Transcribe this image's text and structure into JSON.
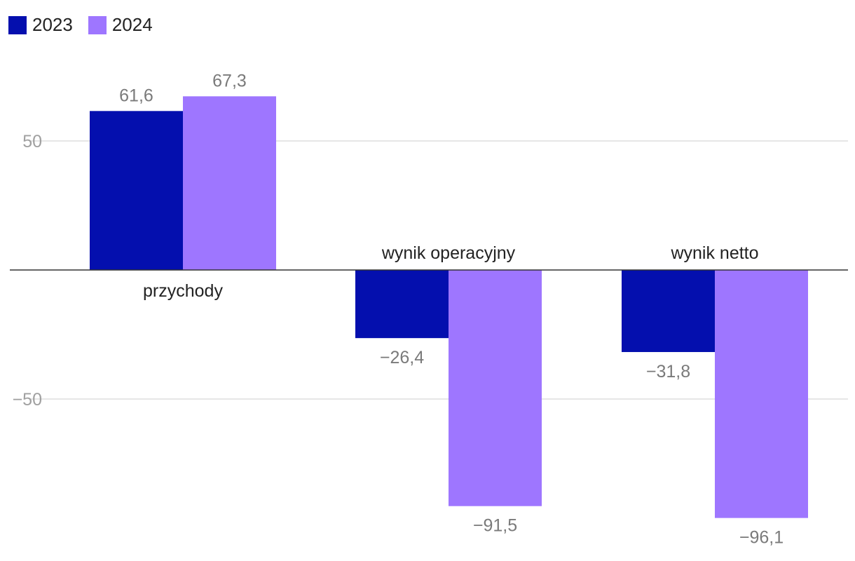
{
  "chart_data": {
    "type": "bar",
    "categories": [
      "przychody",
      "wynik operacyjny",
      "wynik netto"
    ],
    "series": [
      {
        "name": "2023",
        "color": "#040fae",
        "values": [
          61.6,
          -26.4,
          -31.8
        ],
        "labels": [
          "61,6",
          "−26,4",
          "−31,8"
        ]
      },
      {
        "name": "2024",
        "color": "#9e76ff",
        "values": [
          67.3,
          -91.5,
          -96.1
        ],
        "labels": [
          "67,3",
          "−91,5",
          "−96,1"
        ]
      }
    ],
    "yticks": [
      {
        "value": 50,
        "label": "50"
      },
      {
        "value": -50,
        "label": "−50"
      }
    ],
    "ylim": [
      -100,
      75
    ],
    "grid": true,
    "legend_position": "top-left",
    "xlabel": "",
    "ylabel": "",
    "title": ""
  }
}
